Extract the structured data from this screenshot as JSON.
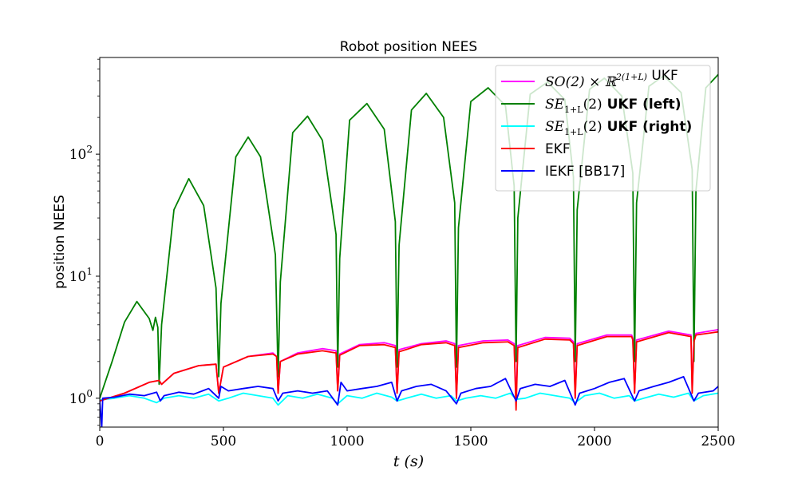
{
  "chart_data": {
    "type": "line",
    "title": "Robot position NEES",
    "xlabel": "t (s)",
    "ylabel": "position NEES",
    "xlim": [
      0,
      2500
    ],
    "ylim": [
      0.58,
      620
    ],
    "yscale": "log",
    "xticks": [
      0,
      500,
      1000,
      1500,
      2000,
      2500
    ],
    "yticks": [
      {
        "value": 1,
        "base": "10",
        "exp": "0"
      },
      {
        "value": 10,
        "base": "10",
        "exp": "1"
      },
      {
        "value": 100,
        "base": "10",
        "exp": "2"
      }
    ],
    "grid": false,
    "legend_position": "top-right",
    "series": [
      {
        "key": "so2",
        "name": "SO(2) × ℝ^{2(1+L)} UKF",
        "color": "#ff00ff",
        "x": [
          0,
          100,
          200,
          240,
          250,
          300,
          400,
          470,
          481,
          500,
          600,
          700,
          715,
          721,
          730,
          800,
          900,
          955,
          962,
          970,
          1050,
          1150,
          1195,
          1202,
          1210,
          1300,
          1400,
          1435,
          1442,
          1450,
          1550,
          1650,
          1675,
          1683,
          1690,
          1800,
          1900,
          1915,
          1922,
          1930,
          2050,
          2150,
          2155,
          2162,
          2170,
          2300,
          2390,
          2395,
          2402,
          2410,
          2500
        ],
        "y": [
          0.95,
          1.1,
          1.35,
          1.4,
          1.3,
          1.6,
          1.85,
          1.9,
          1.1,
          1.8,
          2.2,
          2.35,
          2.2,
          1.1,
          2.0,
          2.35,
          2.55,
          2.45,
          1.15,
          2.3,
          2.75,
          2.85,
          2.7,
          1.1,
          2.5,
          2.8,
          2.95,
          2.8,
          1.0,
          2.7,
          2.95,
          3.0,
          2.8,
          0.95,
          2.7,
          3.15,
          3.1,
          2.9,
          1.05,
          2.8,
          3.3,
          3.3,
          3.1,
          1.1,
          3.0,
          3.55,
          3.3,
          1.15,
          3.0,
          3.4,
          3.65
        ]
      },
      {
        "key": "left",
        "name": "SE_{1+L}(2) UKF (left)",
        "color": "#008000",
        "x": [
          0,
          50,
          100,
          150,
          200,
          215,
          225,
          235,
          240,
          250,
          300,
          360,
          420,
          470,
          481,
          490,
          550,
          600,
          650,
          710,
          721,
          730,
          780,
          840,
          900,
          955,
          962,
          970,
          1010,
          1080,
          1150,
          1195,
          1202,
          1210,
          1260,
          1320,
          1390,
          1435,
          1442,
          1450,
          1500,
          1570,
          1640,
          1675,
          1683,
          1690,
          1740,
          1810,
          1880,
          1915,
          1922,
          1930,
          1980,
          2040,
          2110,
          2155,
          2162,
          2170,
          2220,
          2280,
          2350,
          2395,
          2402,
          2410,
          2450,
          2500
        ],
        "y": [
          1.0,
          2.0,
          4.2,
          6.2,
          4.5,
          3.6,
          4.6,
          3.8,
          1.3,
          4.0,
          35,
          63,
          38,
          8,
          1.5,
          6,
          95,
          138,
          95,
          15,
          1.5,
          9,
          150,
          205,
          130,
          22,
          1.8,
          14,
          190,
          260,
          160,
          28,
          1.8,
          18,
          230,
          315,
          200,
          40,
          1.8,
          25,
          270,
          350,
          250,
          55,
          2.0,
          30,
          310,
          390,
          280,
          65,
          2.0,
          35,
          340,
          420,
          300,
          70,
          2.0,
          40,
          360,
          440,
          320,
          75,
          2.0,
          50,
          350,
          450
        ]
      },
      {
        "key": "right",
        "name": "SE_{1+L}(2) UKF (right)",
        "color": "#00ffff",
        "x": [
          0,
          60,
          120,
          180,
          230,
          260,
          320,
          380,
          440,
          481,
          520,
          580,
          640,
          700,
          721,
          760,
          820,
          880,
          940,
          962,
          1000,
          1060,
          1120,
          1180,
          1202,
          1240,
          1300,
          1360,
          1420,
          1442,
          1480,
          1540,
          1600,
          1660,
          1683,
          1720,
          1780,
          1840,
          1900,
          1922,
          1960,
          2020,
          2080,
          2140,
          2162,
          2200,
          2260,
          2320,
          2380,
          2402,
          2440,
          2500
        ],
        "y": [
          0.97,
          1.0,
          1.05,
          1.0,
          0.92,
          1.0,
          1.05,
          1.0,
          1.08,
          0.95,
          1.0,
          1.1,
          1.05,
          1.0,
          0.88,
          1.05,
          1.0,
          1.08,
          1.0,
          0.9,
          1.05,
          1.0,
          1.1,
          1.02,
          0.95,
          1.0,
          1.08,
          1.0,
          1.05,
          0.95,
          1.0,
          1.05,
          1.0,
          1.1,
          0.98,
          1.0,
          1.1,
          1.05,
          1.0,
          0.92,
          1.05,
          1.1,
          1.0,
          1.05,
          0.95,
          1.0,
          1.08,
          1.02,
          1.1,
          0.95,
          1.05,
          1.1
        ]
      },
      {
        "key": "ekf",
        "name": "EKF",
        "color": "#ff0000",
        "x": [
          0,
          100,
          200,
          240,
          250,
          300,
          400,
          470,
          481,
          500,
          600,
          700,
          715,
          721,
          730,
          800,
          900,
          955,
          962,
          970,
          1050,
          1150,
          1195,
          1202,
          1210,
          1300,
          1400,
          1435,
          1442,
          1450,
          1550,
          1650,
          1675,
          1683,
          1690,
          1800,
          1900,
          1915,
          1922,
          1930,
          2050,
          2150,
          2155,
          2162,
          2170,
          2300,
          2390,
          2395,
          2402,
          2410,
          2500
        ],
        "y": [
          0.95,
          1.1,
          1.35,
          1.4,
          1.3,
          1.6,
          1.85,
          1.9,
          1.1,
          1.8,
          2.2,
          2.3,
          2.2,
          1.1,
          2.0,
          2.3,
          2.45,
          2.35,
          1.15,
          2.25,
          2.7,
          2.75,
          2.6,
          1.1,
          2.4,
          2.75,
          2.85,
          2.7,
          1.0,
          2.6,
          2.85,
          2.9,
          2.7,
          0.8,
          2.6,
          3.05,
          3.0,
          2.8,
          1.0,
          2.7,
          3.2,
          3.2,
          3.0,
          1.1,
          2.9,
          3.45,
          3.2,
          1.1,
          2.9,
          3.3,
          3.5
        ]
      },
      {
        "key": "iekf",
        "name": "IEKF [BB17]",
        "color": "#0000ff",
        "x": [
          0,
          8,
          12,
          60,
          120,
          180,
          230,
          245,
          260,
          320,
          380,
          440,
          481,
          490,
          520,
          580,
          640,
          700,
          721,
          740,
          800,
          860,
          920,
          962,
          975,
          1000,
          1060,
          1120,
          1180,
          1202,
          1220,
          1280,
          1340,
          1400,
          1442,
          1460,
          1520,
          1580,
          1640,
          1683,
          1700,
          1760,
          1820,
          1880,
          1922,
          1940,
          2000,
          2060,
          2120,
          2162,
          2180,
          2240,
          2300,
          2360,
          2402,
          2420,
          2480,
          2500
        ],
        "y": [
          0.95,
          0.58,
          1.0,
          1.02,
          1.08,
          1.05,
          1.12,
          0.95,
          1.05,
          1.12,
          1.08,
          1.2,
          1.0,
          1.25,
          1.15,
          1.2,
          1.25,
          1.2,
          0.95,
          1.1,
          1.15,
          1.1,
          1.15,
          0.88,
          1.35,
          1.15,
          1.2,
          1.25,
          1.35,
          0.95,
          1.15,
          1.25,
          1.3,
          1.15,
          0.9,
          1.1,
          1.2,
          1.25,
          1.45,
          0.95,
          1.2,
          1.3,
          1.25,
          1.4,
          0.88,
          1.1,
          1.2,
          1.35,
          1.45,
          0.95,
          1.15,
          1.25,
          1.35,
          1.5,
          0.95,
          1.1,
          1.15,
          1.25
        ]
      }
    ],
    "legend": [
      {
        "key": "so2",
        "math_base": "SO(2) × ℝ",
        "math_sup": "2(1+L)",
        "bold": "",
        "suffix": " UKF"
      },
      {
        "key": "left",
        "math_base": "SE",
        "math_sub": "1+L",
        "math_tail": "(2)",
        "bold": " UKF (left)",
        "suffix": ""
      },
      {
        "key": "right",
        "math_base": "SE",
        "math_sub": "1+L",
        "math_tail": "(2)",
        "bold": " UKF (right)",
        "suffix": ""
      },
      {
        "key": "ekf",
        "plain": "EKF"
      },
      {
        "key": "iekf",
        "plain": "IEKF [BB17]"
      }
    ]
  }
}
